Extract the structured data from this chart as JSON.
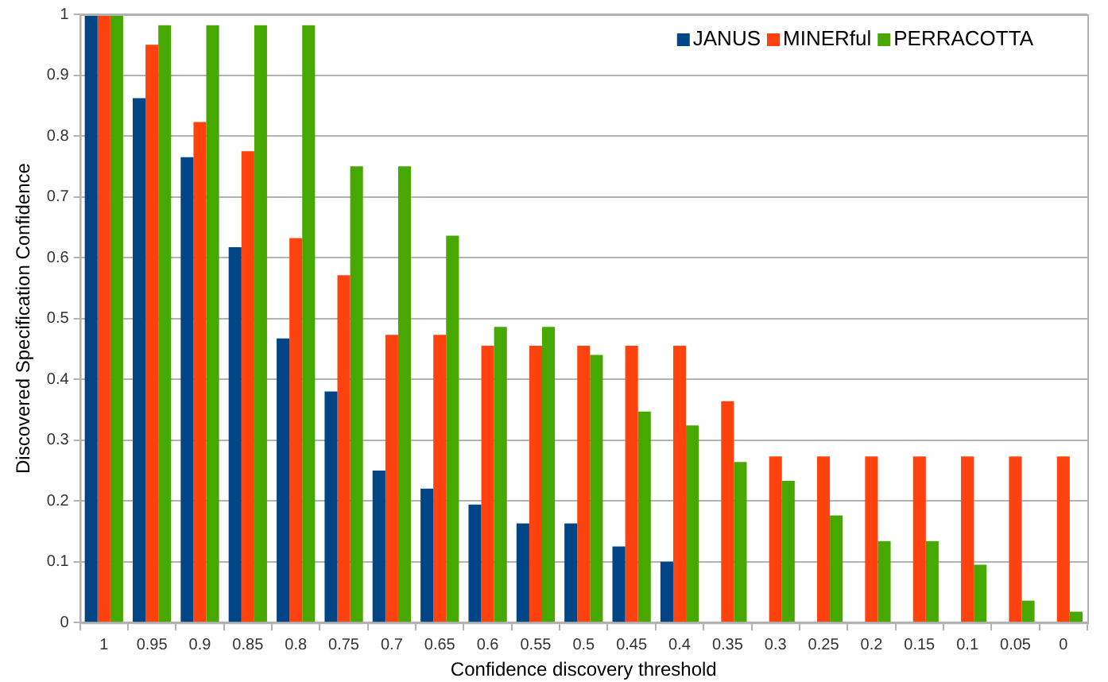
{
  "chart_data": {
    "type": "bar",
    "xlabel": "Confidence discovery threshold",
    "ylabel": "Discovered Specification Confidence",
    "categories": [
      "1",
      "0.95",
      "0.9",
      "0.85",
      "0.8",
      "0.75",
      "0.7",
      "0.65",
      "0.6",
      "0.55",
      "0.5",
      "0.45",
      "0.4",
      "0.35",
      "0.3",
      "0.25",
      "0.2",
      "0.15",
      "0.1",
      "0.05",
      "0"
    ],
    "series": [
      {
        "name": "JANUS",
        "color": "#004586",
        "values": [
          1,
          0.862,
          0.765,
          0.617,
          0.467,
          0.38,
          0.25,
          0.22,
          0.194,
          0.163,
          0.163,
          0.125,
          0.1,
          null,
          null,
          null,
          null,
          null,
          null,
          null,
          null
        ]
      },
      {
        "name": "MINERful",
        "color": "#ff420e",
        "values": [
          1,
          0.95,
          0.823,
          0.775,
          0.632,
          0.571,
          0.473,
          0.473,
          0.455,
          0.455,
          0.455,
          0.455,
          0.455,
          0.364,
          0.273,
          0.273,
          0.273,
          0.273,
          0.273,
          0.273,
          0.273
        ]
      },
      {
        "name": "PERRACOTTA",
        "color": "#46a800",
        "values": [
          1,
          0.982,
          0.982,
          0.982,
          0.982,
          0.75,
          0.75,
          0.636,
          0.486,
          0.486,
          0.44,
          0.347,
          0.324,
          0.264,
          0.233,
          0.176,
          0.134,
          0.134,
          0.095,
          0.036,
          0.018
        ]
      }
    ],
    "ylim": [
      0,
      1
    ],
    "yticks": [
      0,
      0.1,
      0.2,
      0.3,
      0.4,
      0.5,
      0.6,
      0.7,
      0.8,
      0.9,
      1
    ],
    "grid": "y",
    "legend": "top right"
  }
}
